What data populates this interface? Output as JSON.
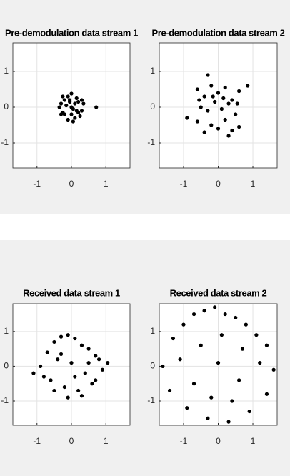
{
  "chart_data": [
    {
      "type": "scatter",
      "title": "Pre-demodulation data stream 1",
      "color": "#000000",
      "grid": true,
      "xlim": [
        -1.7,
        1.7
      ],
      "ylim": [
        -1.7,
        1.8
      ],
      "xticks": [
        -1,
        0,
        1
      ],
      "yticks": [
        -1,
        0,
        1
      ],
      "x": [
        -0.3,
        -0.2,
        -0.1,
        0,
        0.1,
        0.2,
        0.3,
        -0.25,
        0.15,
        0.05,
        -0.05,
        0.25,
        -0.15,
        0.35,
        -0.35,
        0.0,
        0.1,
        -0.2,
        0.2,
        -0.1,
        0.3,
        -0.3,
        0.05,
        0.72,
        -0.05,
        0.15,
        -0.25,
        0.0
      ],
      "values": [
        0.1,
        -0.2,
        0.3,
        0.0,
        -0.3,
        0.15,
        -0.1,
        -0.15,
        0.25,
        -0.05,
        0.2,
        -0.25,
        0.05,
        0.1,
        0.0,
        0.38,
        0.1,
        0.2,
        -0.15,
        -0.35,
        0.2,
        -0.2,
        -0.4,
        0.0,
        0.15,
        -0.1,
        0.3,
        -0.2
      ]
    },
    {
      "type": "scatter",
      "title": "Pre-demodulation data stream 2",
      "color": "#000000",
      "grid": true,
      "xlim": [
        -1.7,
        1.7
      ],
      "ylim": [
        -1.7,
        1.8
      ],
      "xticks": [
        -1,
        0,
        1
      ],
      "yticks": [
        -1,
        0,
        1
      ],
      "x": [
        -0.6,
        -0.4,
        -0.2,
        0,
        0.2,
        0.4,
        0.6,
        -0.5,
        -0.3,
        -0.1,
        0.1,
        0.3,
        0.5,
        -0.6,
        -0.2,
        0.2,
        0.6,
        -0.4,
        0,
        0.4,
        -0.55,
        -0.15,
        0.15,
        0.55,
        -0.9,
        0.85,
        -0.3,
        0.3
      ],
      "values": [
        0.5,
        0.3,
        0.6,
        0.4,
        0.55,
        0.2,
        0.45,
        0.0,
        -0.1,
        0.15,
        -0.05,
        0.1,
        -0.2,
        -0.4,
        -0.5,
        -0.35,
        -0.55,
        -0.7,
        -0.6,
        -0.65,
        0.2,
        0.3,
        0.25,
        0.1,
        -0.3,
        0.6,
        0.9,
        -0.8
      ]
    },
    {
      "type": "scatter",
      "title": "Received data stream 1",
      "color": "#000000",
      "grid": true,
      "xlim": [
        -1.7,
        1.7
      ],
      "ylim": [
        -1.7,
        1.8
      ],
      "xticks": [
        -1,
        0,
        1
      ],
      "yticks": [
        -1,
        0,
        1
      ],
      "x": [
        -0.9,
        -0.7,
        -0.5,
        -0.3,
        -0.1,
        0.1,
        0.3,
        0.5,
        0.7,
        0.9,
        -0.6,
        -0.2,
        0.2,
        0.6,
        -0.4,
        0,
        0.4,
        -0.8,
        0.8,
        -0.5,
        -0.1,
        0.3,
        0.7,
        -0.3,
        0.1,
        0.5,
        -1.1,
        1.05
      ],
      "values": [
        0,
        0.4,
        0.7,
        0.85,
        0.9,
        0.8,
        0.6,
        0.5,
        0.3,
        -0.1,
        -0.4,
        -0.6,
        -0.7,
        -0.5,
        0.2,
        0.1,
        -0.2,
        -0.3,
        0.2,
        -0.7,
        -0.9,
        -0.85,
        -0.4,
        0.35,
        -0.3,
        0.1,
        -0.2,
        0.1
      ]
    },
    {
      "type": "scatter",
      "title": "Received data stream 2",
      "color": "#000000",
      "grid": true,
      "xlim": [
        -1.7,
        1.7
      ],
      "ylim": [
        -1.7,
        1.8
      ],
      "xticks": [
        -1,
        0,
        1
      ],
      "yticks": [
        -1,
        0,
        1
      ],
      "x": [
        -1.6,
        -1.3,
        -1,
        -0.7,
        -0.4,
        -0.1,
        0.2,
        0.5,
        0.8,
        1.1,
        1.4,
        1.6,
        -1.4,
        -0.9,
        -0.3,
        0.3,
        0.9,
        1.4,
        -1.1,
        -0.5,
        0,
        0.6,
        1.2,
        -0.7,
        0.1,
        0.7,
        -0.2,
        0.4
      ],
      "values": [
        0,
        0.8,
        1.2,
        1.5,
        1.6,
        1.7,
        1.5,
        1.4,
        1.2,
        0.9,
        0.6,
        -0.1,
        -0.7,
        -1.2,
        -1.5,
        -1.6,
        -1.3,
        -0.8,
        0.2,
        0.6,
        0.1,
        -0.4,
        0.1,
        -0.5,
        0.9,
        0.5,
        -0.9,
        -1.0
      ]
    }
  ]
}
